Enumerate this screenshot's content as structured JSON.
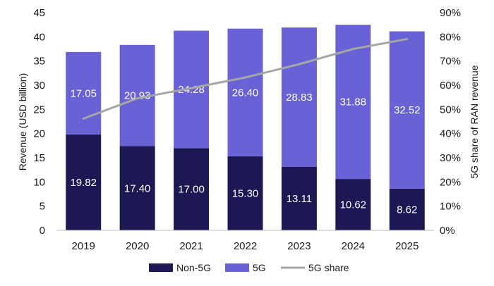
{
  "chart_data": {
    "type": "bar",
    "stacked": true,
    "categories": [
      "2019",
      "2020",
      "2021",
      "2022",
      "2023",
      "2024",
      "2025"
    ],
    "series": [
      {
        "name": "Non-5G",
        "values": [
          19.82,
          17.4,
          17.0,
          15.3,
          13.11,
          10.62,
          8.62
        ],
        "color": "#1b1854"
      },
      {
        "name": "5G",
        "values": [
          17.05,
          20.93,
          24.28,
          26.4,
          28.83,
          31.88,
          32.52
        ],
        "color": "#6962d6"
      }
    ],
    "line_series": {
      "name": "5G share",
      "axis": "right",
      "values": [
        46.2,
        54.6,
        58.8,
        63.2,
        68.7,
        75.0,
        79.1
      ],
      "color": "#a6a6a6"
    },
    "ylabel": "Revenue (USD billion)",
    "ylabel_right": "5G share of RAN revenue",
    "ylim": [
      0,
      45
    ],
    "yticks": [
      "0",
      "5",
      "10",
      "15",
      "20",
      "25",
      "30",
      "35",
      "40",
      "45"
    ],
    "ylim_right": [
      0,
      90
    ],
    "yticks_right": [
      "0%",
      "10%",
      "20%",
      "30%",
      "40%",
      "50%",
      "60%",
      "70%",
      "80%",
      "90%"
    ],
    "grid": false,
    "legend_position": "bottom"
  }
}
